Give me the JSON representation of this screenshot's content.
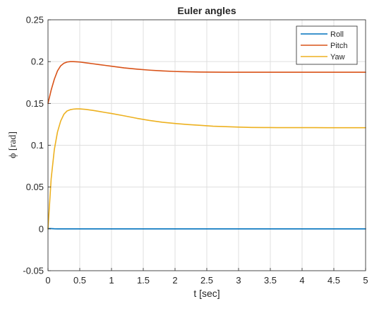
{
  "chart_data": {
    "type": "line",
    "title": "Euler angles",
    "xlabel": "t [sec]",
    "ylabel": "ϕ [rad]",
    "xlim": [
      0,
      5
    ],
    "ylim": [
      -0.05,
      0.25
    ],
    "xticks": [
      0,
      0.5,
      1,
      1.5,
      2,
      2.5,
      3,
      3.5,
      4,
      4.5,
      5
    ],
    "xtick_labels": [
      "0",
      "0.5",
      "1",
      "1.5",
      "2",
      "2.5",
      "3",
      "3.5",
      "4",
      "4.5",
      "5"
    ],
    "yticks": [
      -0.05,
      0,
      0.05,
      0.1,
      0.15,
      0.2,
      0.25
    ],
    "ytick_labels": [
      "-0.05",
      "0",
      "0.05",
      "0.1",
      "0.15",
      "0.2",
      "0.25"
    ],
    "grid": true,
    "legend_position": "top-right",
    "x": [
      0,
      0.05,
      0.1,
      0.15,
      0.2,
      0.25,
      0.3,
      0.35,
      0.4,
      0.45,
      0.5,
      0.6,
      0.7,
      0.8,
      0.9,
      1.0,
      1.2,
      1.4,
      1.6,
      1.8,
      2.0,
      2.2,
      2.4,
      2.6,
      2.8,
      3.0,
      3.2,
      3.4,
      3.6,
      3.8,
      4.0,
      4.2,
      4.4,
      4.6,
      4.8,
      5.0
    ],
    "series": [
      {
        "name": "Roll",
        "color": "#0072BD",
        "values": [
          0.0005,
          0.0003,
          0.0001,
          0,
          0,
          0,
          0,
          0,
          0,
          0,
          0,
          0,
          0,
          0,
          0,
          0,
          0,
          0,
          0,
          0,
          0,
          0,
          0,
          0,
          0,
          0,
          0,
          0,
          0,
          0,
          0,
          0,
          0,
          0,
          0,
          0
        ]
      },
      {
        "name": "Pitch",
        "color": "#D95319",
        "values": [
          0.15,
          0.166,
          0.179,
          0.189,
          0.195,
          0.198,
          0.1995,
          0.2,
          0.2,
          0.1998,
          0.1995,
          0.1985,
          0.1975,
          0.1965,
          0.1955,
          0.1945,
          0.1925,
          0.191,
          0.1898,
          0.1889,
          0.1882,
          0.1878,
          0.1875,
          0.1874,
          0.1873,
          0.1873,
          0.1873,
          0.1873,
          0.1873,
          0.1873,
          0.1873,
          0.1873,
          0.1873,
          0.1873,
          0.1873,
          0.1873
        ]
      },
      {
        "name": "Yaw",
        "color": "#EDB120",
        "values": [
          0,
          0.06,
          0.095,
          0.116,
          0.129,
          0.137,
          0.141,
          0.1425,
          0.1432,
          0.1435,
          0.1435,
          0.1428,
          0.1418,
          0.1405,
          0.1392,
          0.138,
          0.1352,
          0.1322,
          0.1296,
          0.1275,
          0.126,
          0.1248,
          0.1238,
          0.1228,
          0.1222,
          0.1217,
          0.1213,
          0.1212,
          0.1211,
          0.1211,
          0.1211,
          0.1211,
          0.121,
          0.121,
          0.121,
          0.121
        ]
      }
    ]
  }
}
